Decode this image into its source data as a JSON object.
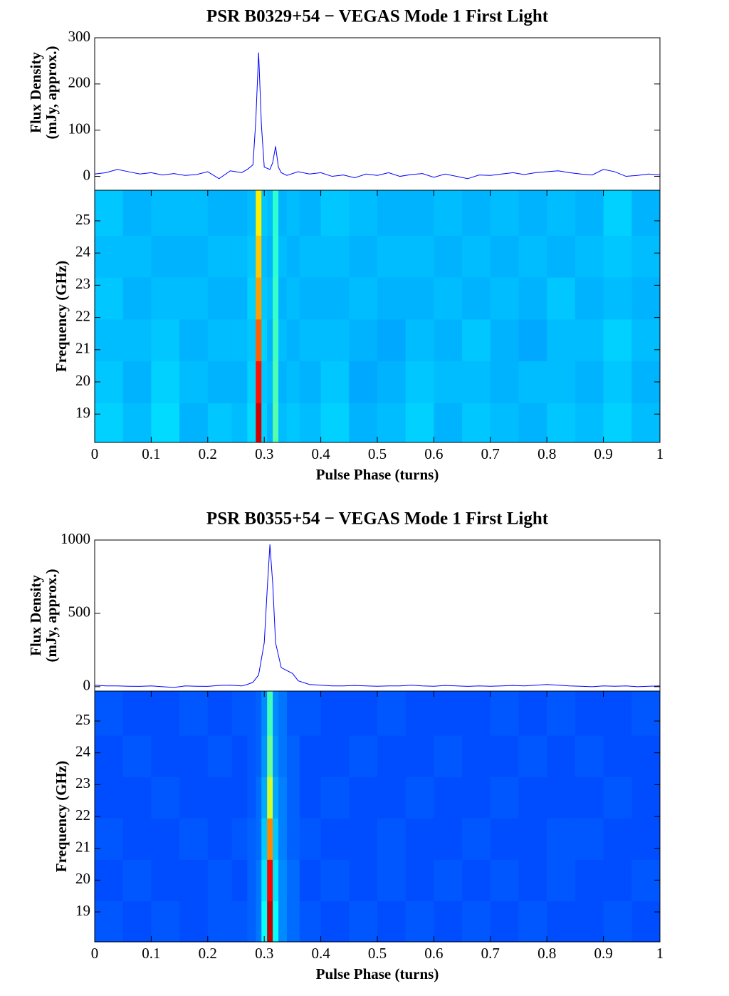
{
  "chart_data": [
    {
      "type": "line",
      "title": "PSR B0329+54 − VEGAS Mode 1 First Light",
      "ylabel": [
        "Flux Density",
        "(mJy, approx.)"
      ],
      "color": "#0000ff",
      "x": [
        0,
        0.02,
        0.04,
        0.06,
        0.08,
        0.1,
        0.12,
        0.14,
        0.16,
        0.18,
        0.2,
        0.22,
        0.24,
        0.26,
        0.27,
        0.28,
        0.285,
        0.29,
        0.295,
        0.3,
        0.31,
        0.315,
        0.32,
        0.325,
        0.33,
        0.34,
        0.36,
        0.38,
        0.4,
        0.42,
        0.44,
        0.46,
        0.48,
        0.5,
        0.52,
        0.54,
        0.56,
        0.58,
        0.6,
        0.62,
        0.64,
        0.66,
        0.68,
        0.7,
        0.72,
        0.74,
        0.76,
        0.78,
        0.8,
        0.82,
        0.84,
        0.86,
        0.88,
        0.9,
        0.92,
        0.94,
        0.96,
        0.98,
        1.0
      ],
      "values": [
        5,
        8,
        15,
        10,
        5,
        8,
        3,
        6,
        2,
        4,
        10,
        -5,
        12,
        8,
        15,
        25,
        120,
        268,
        110,
        20,
        15,
        30,
        65,
        20,
        8,
        2,
        10,
        5,
        8,
        0,
        3,
        -3,
        5,
        2,
        8,
        0,
        4,
        6,
        -2,
        5,
        0,
        -5,
        3,
        2,
        5,
        8,
        4,
        8,
        10,
        12,
        8,
        5,
        3,
        15,
        10,
        0,
        2,
        5,
        3
      ],
      "xlim": [
        0,
        1
      ],
      "ylim": [
        -30,
        300
      ],
      "yticks": [
        0,
        100,
        200,
        300
      ]
    },
    {
      "type": "heatmap",
      "ylabel": "Frequency (GHz)",
      "xlabel": "Pulse Phase (turns)",
      "colormap": "jet",
      "zlim": [
        0,
        1
      ],
      "x": [
        0.025,
        0.075,
        0.125,
        0.175,
        0.225,
        0.26,
        0.28,
        0.29,
        0.3,
        0.31,
        0.32,
        0.33,
        0.35,
        0.375,
        0.425,
        0.475,
        0.525,
        0.575,
        0.625,
        0.675,
        0.725,
        0.775,
        0.825,
        0.875,
        0.925,
        0.975
      ],
      "y": [
        18.7,
        20,
        21.3,
        22.6,
        23.9,
        25.2
      ],
      "z": [
        [
          0.33,
          0.31,
          0.34,
          0.3,
          0.32,
          0.31,
          0.34,
          0.92,
          0.33,
          0.3,
          0.46,
          0.31,
          0.32,
          0.31,
          0.33,
          0.3,
          0.31,
          0.33,
          0.3,
          0.32,
          0.31,
          0.3,
          0.32,
          0.31,
          0.33,
          0.31
        ],
        [
          0.32,
          0.3,
          0.33,
          0.31,
          0.3,
          0.3,
          0.33,
          0.86,
          0.32,
          0.31,
          0.45,
          0.3,
          0.31,
          0.3,
          0.32,
          0.29,
          0.3,
          0.32,
          0.31,
          0.31,
          0.3,
          0.31,
          0.31,
          0.3,
          0.32,
          0.3
        ],
        [
          0.31,
          0.31,
          0.32,
          0.3,
          0.31,
          0.31,
          0.32,
          0.78,
          0.33,
          0.3,
          0.44,
          0.31,
          0.3,
          0.31,
          0.31,
          0.3,
          0.29,
          0.31,
          0.3,
          0.32,
          0.3,
          0.29,
          0.31,
          0.31,
          0.33,
          0.31
        ],
        [
          0.32,
          0.3,
          0.31,
          0.31,
          0.3,
          0.3,
          0.33,
          0.72,
          0.32,
          0.31,
          0.43,
          0.3,
          0.31,
          0.3,
          0.3,
          0.31,
          0.3,
          0.3,
          0.31,
          0.3,
          0.31,
          0.3,
          0.32,
          0.3,
          0.31,
          0.3
        ],
        [
          0.31,
          0.31,
          0.3,
          0.3,
          0.31,
          0.31,
          0.32,
          0.68,
          0.31,
          0.3,
          0.42,
          0.31,
          0.3,
          0.31,
          0.31,
          0.3,
          0.31,
          0.31,
          0.3,
          0.31,
          0.3,
          0.31,
          0.3,
          0.31,
          0.32,
          0.31
        ],
        [
          0.32,
          0.3,
          0.31,
          0.31,
          0.3,
          0.3,
          0.31,
          0.64,
          0.32,
          0.31,
          0.42,
          0.3,
          0.31,
          0.3,
          0.32,
          0.31,
          0.3,
          0.3,
          0.31,
          0.3,
          0.31,
          0.3,
          0.31,
          0.3,
          0.33,
          0.3
        ]
      ],
      "xlim": [
        0,
        1
      ],
      "ylim": [
        18.12,
        25.95
      ],
      "xticks": [
        0,
        0.1,
        0.2,
        0.3,
        0.4,
        0.5,
        0.6,
        0.7,
        0.8,
        0.9,
        1
      ],
      "yticks": [
        19,
        20,
        21,
        22,
        23,
        24,
        25
      ]
    },
    {
      "type": "line",
      "title": "PSR B0355+54 − VEGAS Mode 1 First Light",
      "ylabel": [
        "Flux Density",
        "(mJy, approx.)"
      ],
      "color": "#0000ff",
      "x": [
        0,
        0.02,
        0.04,
        0.06,
        0.08,
        0.1,
        0.12,
        0.14,
        0.16,
        0.18,
        0.2,
        0.22,
        0.24,
        0.26,
        0.27,
        0.28,
        0.29,
        0.3,
        0.305,
        0.31,
        0.315,
        0.32,
        0.33,
        0.34,
        0.35,
        0.36,
        0.38,
        0.4,
        0.42,
        0.44,
        0.46,
        0.48,
        0.5,
        0.52,
        0.54,
        0.56,
        0.58,
        0.6,
        0.62,
        0.64,
        0.66,
        0.68,
        0.7,
        0.72,
        0.74,
        0.76,
        0.78,
        0.8,
        0.82,
        0.84,
        0.86,
        0.88,
        0.9,
        0.92,
        0.94,
        0.96,
        0.98,
        1.0
      ],
      "values": [
        10,
        5,
        5,
        3,
        2,
        5,
        0,
        -5,
        5,
        3,
        2,
        8,
        10,
        5,
        15,
        30,
        80,
        300,
        650,
        970,
        700,
        300,
        130,
        110,
        90,
        40,
        15,
        10,
        5,
        5,
        8,
        5,
        3,
        5,
        5,
        10,
        5,
        3,
        8,
        5,
        2,
        5,
        3,
        5,
        8,
        5,
        10,
        15,
        10,
        5,
        3,
        0,
        5,
        3,
        5,
        0,
        3,
        5
      ],
      "xlim": [
        0,
        1
      ],
      "ylim": [
        -30,
        1000
      ],
      "yticks": [
        0,
        500,
        1000
      ]
    },
    {
      "type": "heatmap",
      "ylabel": "Frequency (GHz)",
      "xlabel": "Pulse Phase (turns)",
      "colormap": "jet",
      "zlim": [
        0,
        1
      ],
      "x": [
        0.025,
        0.075,
        0.125,
        0.175,
        0.225,
        0.26,
        0.28,
        0.29,
        0.3,
        0.31,
        0.32,
        0.33,
        0.35,
        0.375,
        0.425,
        0.475,
        0.525,
        0.575,
        0.625,
        0.675,
        0.725,
        0.775,
        0.825,
        0.875,
        0.925,
        0.975
      ],
      "y": [
        18.7,
        20,
        21.3,
        22.6,
        23.9,
        25.2
      ],
      "z": [
        [
          0.21,
          0.2,
          0.21,
          0.2,
          0.21,
          0.21,
          0.22,
          0.24,
          0.38,
          0.93,
          0.38,
          0.26,
          0.23,
          0.21,
          0.2,
          0.21,
          0.2,
          0.21,
          0.2,
          0.21,
          0.2,
          0.21,
          0.2,
          0.2,
          0.21,
          0.2
        ],
        [
          0.2,
          0.21,
          0.2,
          0.2,
          0.21,
          0.2,
          0.22,
          0.24,
          0.35,
          0.87,
          0.35,
          0.26,
          0.23,
          0.2,
          0.21,
          0.2,
          0.21,
          0.2,
          0.21,
          0.2,
          0.21,
          0.2,
          0.21,
          0.2,
          0.2,
          0.21
        ],
        [
          0.21,
          0.2,
          0.2,
          0.21,
          0.2,
          0.21,
          0.22,
          0.23,
          0.32,
          0.74,
          0.32,
          0.25,
          0.22,
          0.21,
          0.2,
          0.2,
          0.21,
          0.2,
          0.2,
          0.21,
          0.2,
          0.2,
          0.21,
          0.21,
          0.2,
          0.2
        ],
        [
          0.2,
          0.2,
          0.21,
          0.2,
          0.2,
          0.2,
          0.21,
          0.23,
          0.29,
          0.58,
          0.29,
          0.25,
          0.22,
          0.2,
          0.21,
          0.2,
          0.2,
          0.21,
          0.2,
          0.2,
          0.21,
          0.2,
          0.2,
          0.2,
          0.21,
          0.2
        ],
        [
          0.2,
          0.21,
          0.2,
          0.2,
          0.21,
          0.2,
          0.21,
          0.22,
          0.27,
          0.48,
          0.27,
          0.24,
          0.22,
          0.2,
          0.2,
          0.21,
          0.2,
          0.2,
          0.21,
          0.2,
          0.2,
          0.21,
          0.2,
          0.21,
          0.2,
          0.2
        ],
        [
          0.21,
          0.2,
          0.2,
          0.21,
          0.2,
          0.21,
          0.21,
          0.22,
          0.26,
          0.44,
          0.26,
          0.24,
          0.21,
          0.21,
          0.2,
          0.2,
          0.21,
          0.2,
          0.2,
          0.2,
          0.21,
          0.2,
          0.21,
          0.2,
          0.2,
          0.21
        ]
      ],
      "xlim": [
        0,
        1
      ],
      "ylim": [
        18.06,
        25.94
      ],
      "xticks": [
        0,
        0.1,
        0.2,
        0.3,
        0.4,
        0.5,
        0.6,
        0.7,
        0.8,
        0.9,
        1
      ],
      "yticks": [
        19,
        20,
        21,
        22,
        23,
        24,
        25
      ]
    }
  ]
}
